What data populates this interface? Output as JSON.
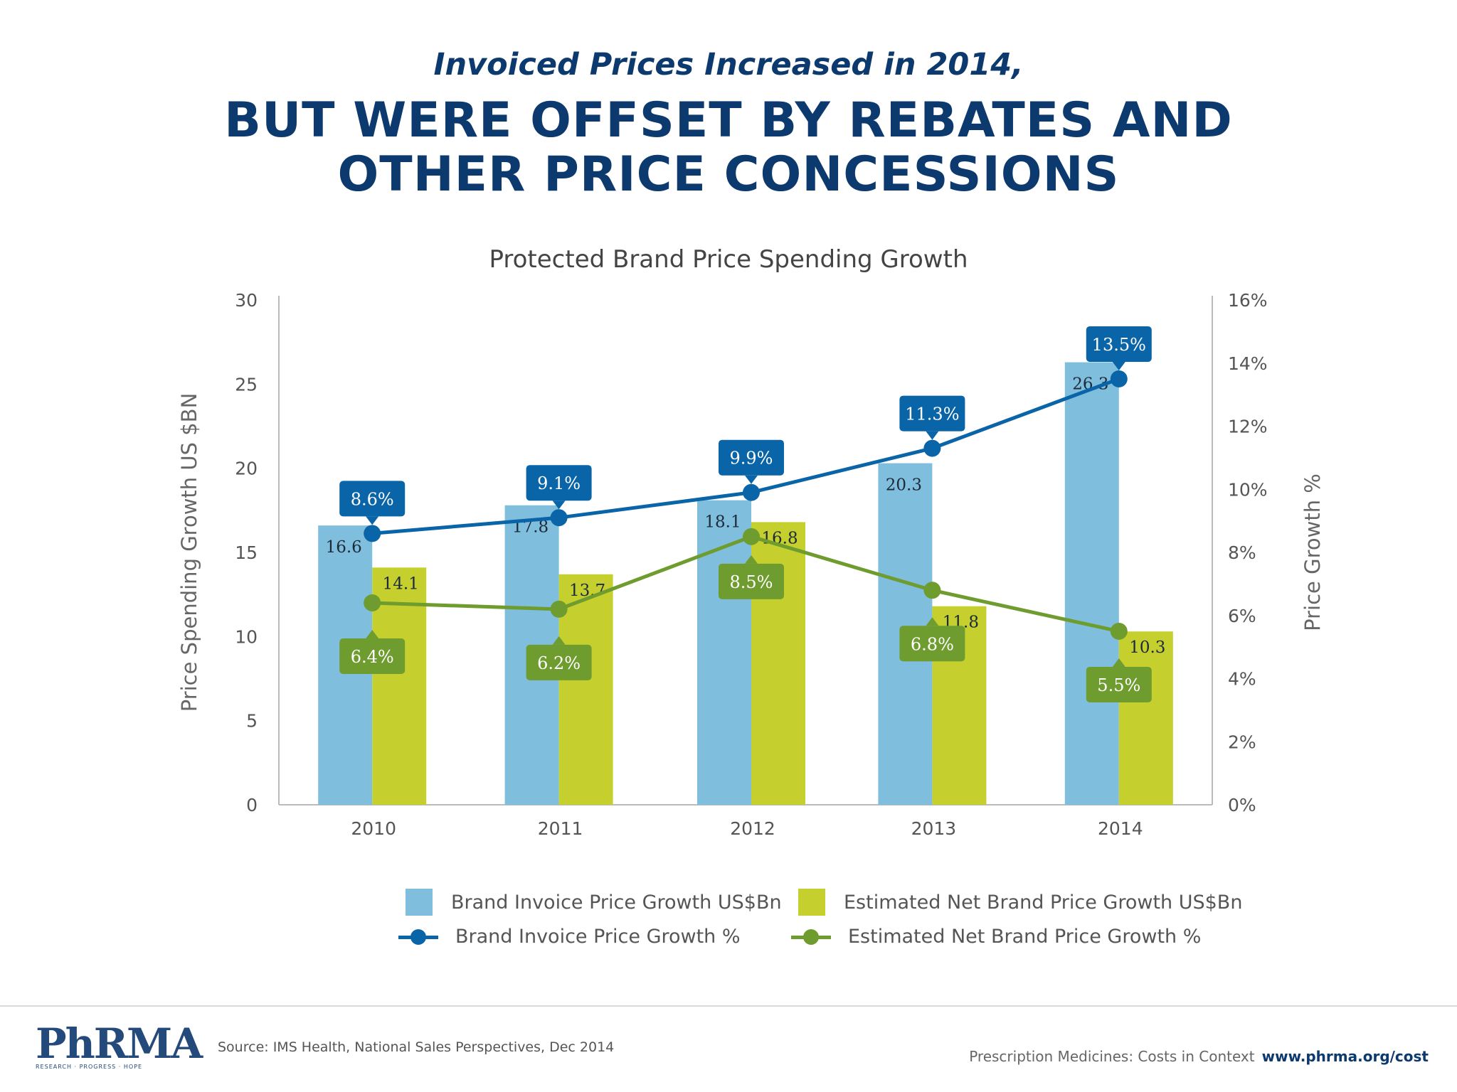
{
  "header": {
    "line1": "Invoiced Prices Increased in 2014,",
    "line2a": "BUT WERE OFFSET BY REBATES AND",
    "line2b": "OTHER PRICE CONCESSIONS"
  },
  "chart_data": {
    "type": "bar",
    "title": "Protected Brand Price Spending Growth",
    "categories": [
      "2010",
      "2011",
      "2012",
      "2013",
      "2014"
    ],
    "ylabel": "Price Spending Growth US $BN",
    "ylim": [
      0,
      30
    ],
    "yticks": [
      "0",
      "5",
      "10",
      "15",
      "20",
      "25",
      "30"
    ],
    "y2label": "Price Growth %",
    "y2lim": [
      0,
      16
    ],
    "y2ticks": [
      "0%",
      "2%",
      "4%",
      "6%",
      "8%",
      "10%",
      "12%",
      "14%",
      "16%"
    ],
    "series": [
      {
        "name": "Brand Invoice Price Growth US$Bn",
        "kind": "bar",
        "axis": "left",
        "color": "#7fbfdd",
        "values": [
          16.6,
          17.8,
          18.1,
          20.3,
          26.3
        ],
        "labels": [
          "16.6",
          "17.8",
          "18.1",
          "20.3",
          "26.3"
        ]
      },
      {
        "name": "Estimated Net Brand Price Growth US$Bn",
        "kind": "bar",
        "axis": "left",
        "color": "#c5d02e",
        "values": [
          14.1,
          13.7,
          16.8,
          11.8,
          10.3
        ],
        "labels": [
          "14.1",
          "13.7",
          "16.8",
          "11.8",
          "10.3"
        ]
      },
      {
        "name": "Brand Invoice Price Growth %",
        "kind": "line",
        "axis": "right",
        "color": "#0a64a8",
        "values": [
          8.6,
          9.1,
          9.9,
          11.3,
          13.5
        ],
        "labels": [
          "8.6%",
          "9.1%",
          "9.9%",
          "11.3%",
          "13.5%"
        ]
      },
      {
        "name": "Estimated Net Brand Price Growth %",
        "kind": "line",
        "axis": "right",
        "color": "#6f9c2e",
        "values": [
          6.4,
          6.2,
          8.5,
          6.8,
          5.5
        ],
        "labels": [
          "6.4%",
          "6.2%",
          "8.5%",
          "6.8%",
          "5.5%"
        ]
      }
    ]
  },
  "legend": {
    "item1": "Brand Invoice Price Growth US$Bn",
    "item2": "Estimated Net Brand Price Growth US$Bn",
    "item3": "Brand Invoice Price Growth %",
    "item4": "Estimated Net Brand Price Growth %"
  },
  "colors": {
    "title": "#0d3a6e",
    "bar_invoice": "#7fbfdd",
    "bar_net": "#c5d02e",
    "line_invoice": "#0a64a8",
    "line_net": "#6f9c2e"
  },
  "footer": {
    "logo_text": "PhRMA",
    "logo_tagline": "RESEARCH · PROGRESS · HOPE",
    "source": "Source: IMS Health, National Sales Perspectives, Dec 2014",
    "tagline": "Prescription Medicines: Costs in Context",
    "url": "www.phrma.org/cost"
  }
}
